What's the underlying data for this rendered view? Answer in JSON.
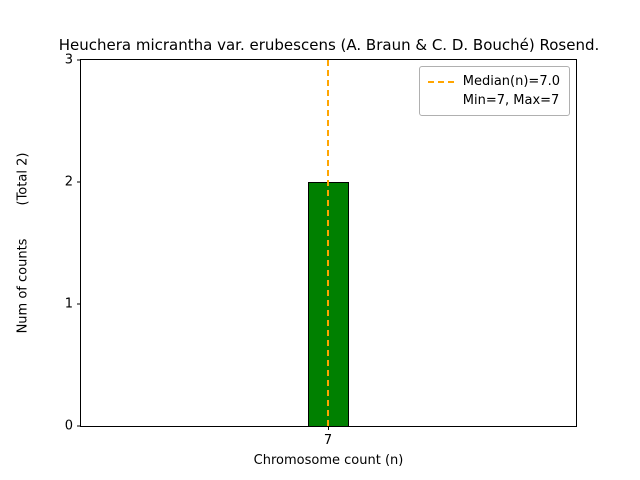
{
  "chart_data": {
    "type": "bar",
    "title": "Heuchera micrantha var. erubescens (A. Braun & C. D. Bouché) Rosend.",
    "xlabel": "Chromosome count (n)",
    "ylabel": "Num of counts        (Total 2)",
    "total_annotation": "(Total 2)",
    "categories": [
      "7"
    ],
    "values": [
      2
    ],
    "ylim": [
      0,
      3
    ],
    "yticks": [
      "0",
      "1",
      "2",
      "3"
    ],
    "bar_color": "#008000",
    "bar_edge_color": "#000000",
    "grid": false,
    "median_line": {
      "x": 7,
      "color": "#FFA500",
      "style": "dashed",
      "label": "Median(n)=7.0"
    },
    "legend": {
      "position": "upper right",
      "entries": [
        "Median(n)=7.0",
        "Min=7, Max=7"
      ]
    }
  }
}
